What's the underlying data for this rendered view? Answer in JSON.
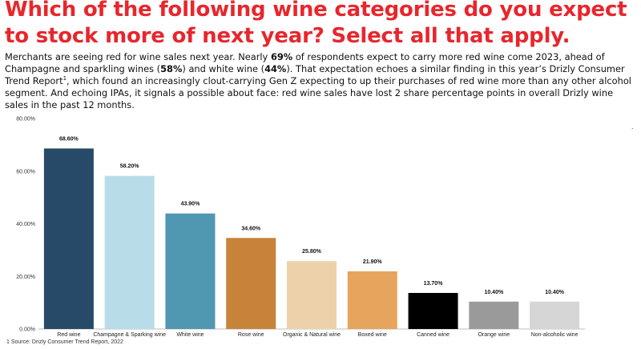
{
  "headline": "Which of the following wine categories do you expect to stock more of next year? Select all that apply.",
  "body": {
    "p1": "Merchants are seeing red for wine sales next year. Nearly ",
    "b1": "69%",
    "p2": " of respondents expect to carry more red wine come 2023, ahead of Champagne and sparkling wines (",
    "b2": "58%",
    "p3": ") and white wine (",
    "b3": "44%",
    "p4": "). That expectation echoes a similar finding in this year’s Drizly Consumer Trend Report",
    "sup": "1",
    "p5": ", which found an increasingly clout-carrying Gen Z expecting to up their purchases of red wine more than any other alcohol segment. And echoing IPAs, it signals a possible about face: red wine sales have lost 2 share percentage points in overall Drizly wine sales in the past 12 months."
  },
  "stray_mark": ".",
  "footnote": "1 Source: Drizly Consumer Trend Report, 2022",
  "chart_data": {
    "type": "bar",
    "categories": [
      "Red wine",
      "Champagne & Sparking wine",
      "White wine",
      "Rose wine",
      "Organic & Natural wine",
      "Boxed wine",
      "Canned wine",
      "Orange wine",
      "Non-alcoholic wine"
    ],
    "values": [
      68.6,
      58.2,
      43.9,
      34.6,
      25.8,
      21.9,
      13.7,
      10.4,
      10.4
    ],
    "data_labels": [
      "68.60%",
      "58.20%",
      "43.90%",
      "34.60%",
      "25.80%",
      "21.90%",
      "13.70%",
      "10.40%",
      "10.40%"
    ],
    "bar_colors": [
      "#264a68",
      "#b9dce9",
      "#5097b1",
      "#c8833a",
      "#ecd1ab",
      "#e6a45c",
      "#000000",
      "#9a9a9a",
      "#d6d6d6"
    ],
    "yticks": [
      0,
      20,
      40,
      60,
      80
    ],
    "ytick_labels": [
      "0.00%",
      "20.00%",
      "40.00%",
      "60.00%",
      "80.00%"
    ],
    "ylim": [
      0,
      80
    ],
    "grid": false,
    "legend": "none"
  }
}
